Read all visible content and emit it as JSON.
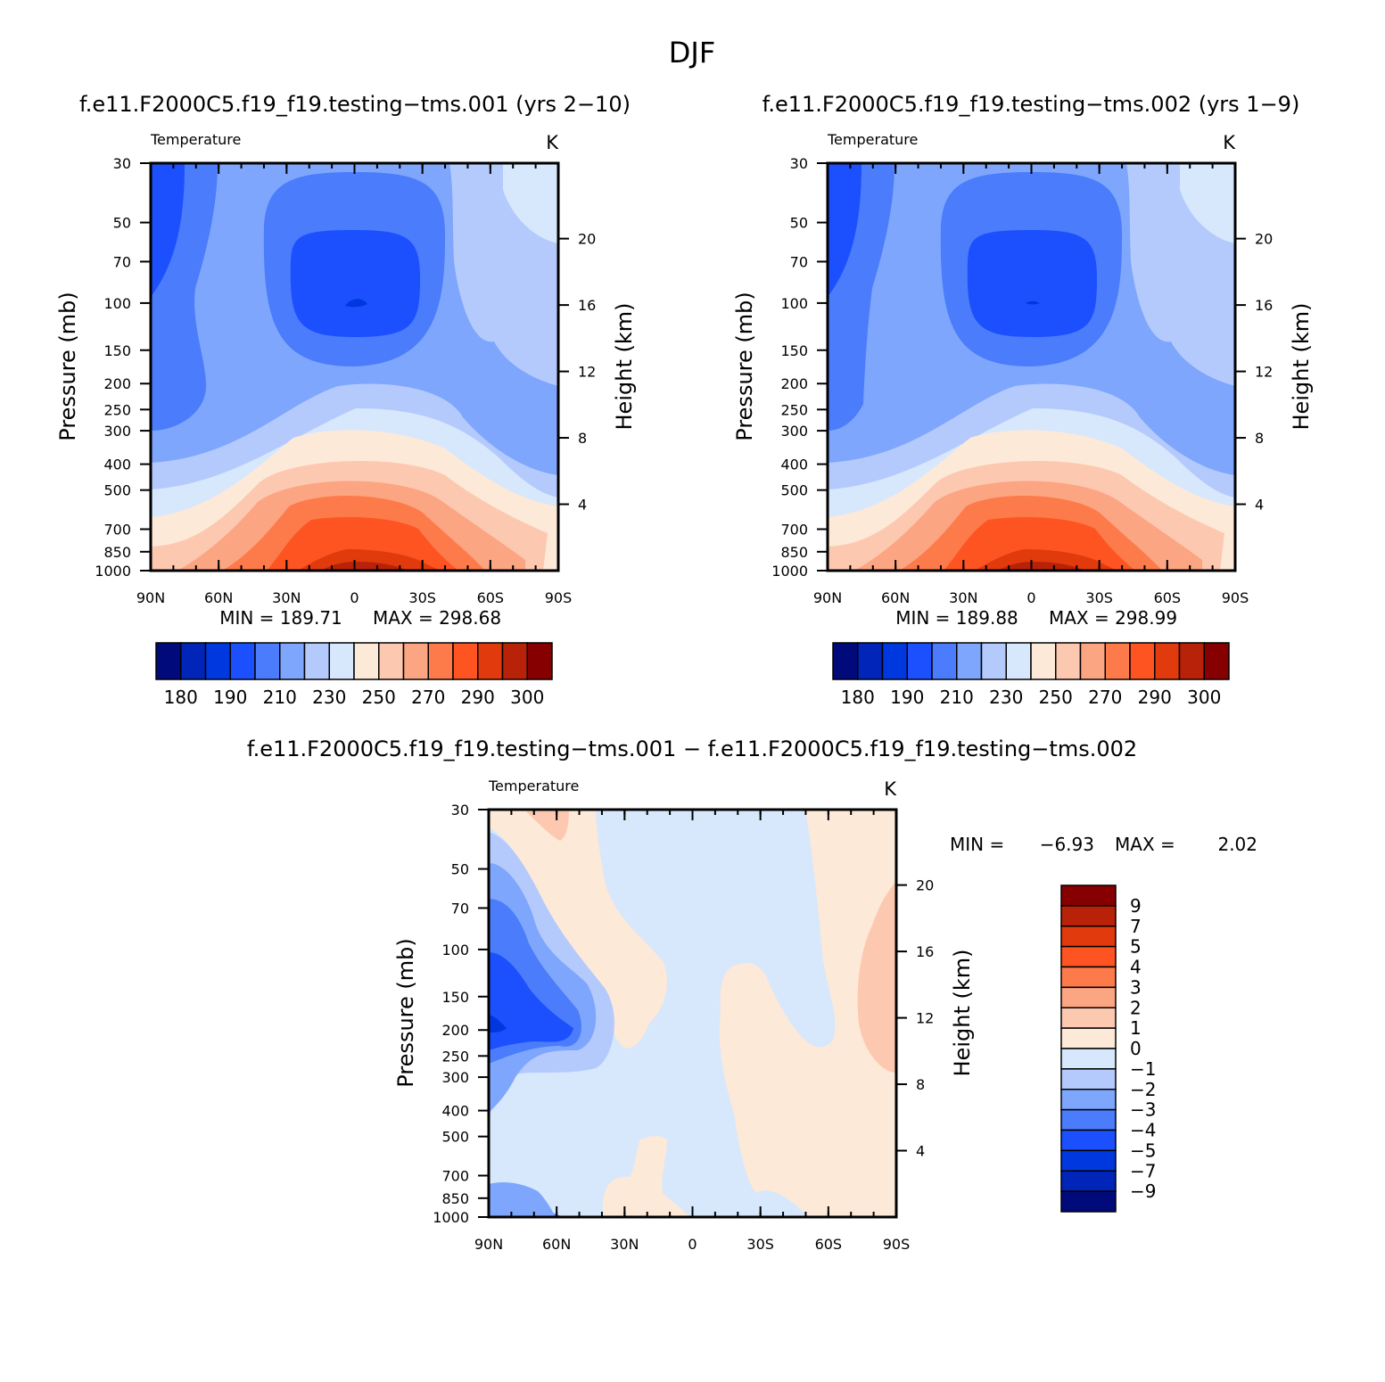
{
  "figure": {
    "season": "DJF",
    "diff_title": "f.e11.F2000C5.f19_f19.testing−tms.001  −  f.e11.F2000C5.f19_f19.testing−tms.002"
  },
  "chart_data": [
    {
      "type": "contour",
      "id": "case1",
      "title": "f.e11.F2000C5.f19_f19.testing−tms.001 (yrs 2−10)",
      "left_string": "Temperature",
      "right_string": "K",
      "ylabel": "Pressure (mb)",
      "ylabel_right": "Height (km)",
      "x_ticks": [
        "90N",
        "60N",
        "30N",
        "0",
        "30S",
        "60S",
        "90S"
      ],
      "x_values": [
        90,
        60,
        30,
        0,
        -30,
        -60,
        -90
      ],
      "y_ticks": [
        30,
        50,
        70,
        100,
        150,
        200,
        250,
        300,
        400,
        500,
        700,
        850,
        1000
      ],
      "y_ticks_right_km": [
        4,
        8,
        12,
        16,
        20
      ],
      "ylim": [
        1000,
        30
      ],
      "min_label": "MIN = 189.71",
      "max_label": "MAX = 298.68",
      "min": 189.71,
      "max": 298.68,
      "colorbar_labels": [
        "180",
        "190",
        "210",
        "230",
        "250",
        "270",
        "290",
        "300"
      ],
      "contour_levels": [
        180,
        185,
        190,
        200,
        210,
        220,
        230,
        240,
        250,
        260,
        270,
        280,
        290,
        295,
        300
      ]
    },
    {
      "type": "contour",
      "id": "case2",
      "title": "f.e11.F2000C5.f19_f19.testing−tms.002 (yrs 1−9)",
      "left_string": "Temperature",
      "right_string": "K",
      "ylabel": "Pressure (mb)",
      "ylabel_right": "Height (km)",
      "x_ticks": [
        "90N",
        "60N",
        "30N",
        "0",
        "30S",
        "60S",
        "90S"
      ],
      "x_values": [
        90,
        60,
        30,
        0,
        -30,
        -60,
        -90
      ],
      "y_ticks": [
        30,
        50,
        70,
        100,
        150,
        200,
        250,
        300,
        400,
        500,
        700,
        850,
        1000
      ],
      "y_ticks_right_km": [
        4,
        8,
        12,
        16,
        20
      ],
      "ylim": [
        1000,
        30
      ],
      "min_label": "MIN = 189.88",
      "max_label": "MAX = 298.99",
      "min": 189.88,
      "max": 298.99,
      "colorbar_labels": [
        "180",
        "190",
        "210",
        "230",
        "250",
        "270",
        "290",
        "300"
      ],
      "contour_levels": [
        180,
        185,
        190,
        200,
        210,
        220,
        230,
        240,
        250,
        260,
        270,
        280,
        290,
        295,
        300
      ]
    },
    {
      "type": "contour",
      "id": "diff",
      "left_string": "Temperature",
      "right_string": "K",
      "ylabel": "Pressure (mb)",
      "ylabel_right": "Height (km)",
      "x_ticks": [
        "90N",
        "60N",
        "30N",
        "0",
        "30S",
        "60S",
        "90S"
      ],
      "x_values": [
        90,
        60,
        30,
        0,
        -30,
        -60,
        -90
      ],
      "y_ticks": [
        30,
        50,
        70,
        100,
        150,
        200,
        250,
        300,
        400,
        500,
        700,
        850,
        1000
      ],
      "y_ticks_right_km": [
        4,
        8,
        12,
        16,
        20
      ],
      "ylim": [
        1000,
        30
      ],
      "min_text": "MIN =",
      "min_value": "−6.93",
      "max_text": "MAX =",
      "max_value": "2.02",
      "min": -6.93,
      "max": 2.02,
      "colorbar_labels": [
        "9",
        "7",
        "5",
        "4",
        "3",
        "2",
        "1",
        "0",
        "−1",
        "−2",
        "−3",
        "−4",
        "−5",
        "−7",
        "−9"
      ],
      "contour_levels": [
        -9,
        -7,
        -5,
        -4,
        -3,
        -2,
        -1,
        0,
        1,
        2,
        3,
        4,
        5,
        7,
        9
      ]
    }
  ],
  "colors": {
    "palette": [
      "#000a7a",
      "#0025b8",
      "#0038e0",
      "#1c50ff",
      "#4a7cfb",
      "#7ea6fc",
      "#b4cafd",
      "#d7e7fc",
      "#fde9d8",
      "#fdc8b0",
      "#fca582",
      "#fd7b4b",
      "#fd5422",
      "#e03a0d",
      "#b82208",
      "#860002"
    ]
  }
}
